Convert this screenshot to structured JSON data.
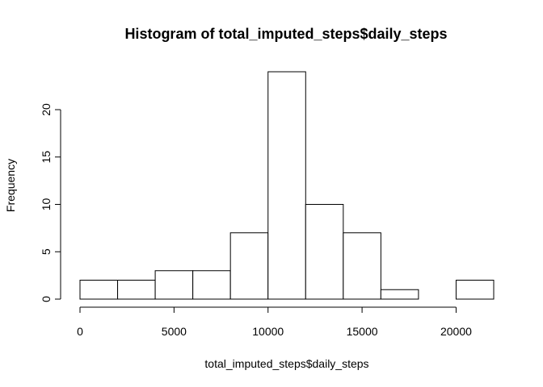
{
  "chart_data": {
    "type": "bar",
    "title": "Histogram of total_imputed_steps$daily_steps",
    "xlabel": "total_imputed_steps$daily_steps",
    "ylabel": "Frequency",
    "bins": [
      {
        "start": 0,
        "end": 2000,
        "count": 2
      },
      {
        "start": 2000,
        "end": 4000,
        "count": 2
      },
      {
        "start": 4000,
        "end": 6000,
        "count": 3
      },
      {
        "start": 6000,
        "end": 8000,
        "count": 3
      },
      {
        "start": 8000,
        "end": 10000,
        "count": 7
      },
      {
        "start": 10000,
        "end": 12000,
        "count": 24
      },
      {
        "start": 12000,
        "end": 14000,
        "count": 10
      },
      {
        "start": 14000,
        "end": 16000,
        "count": 7
      },
      {
        "start": 16000,
        "end": 18000,
        "count": 1
      },
      {
        "start": 18000,
        "end": 20000,
        "count": 0
      },
      {
        "start": 20000,
        "end": 22000,
        "count": 2
      }
    ],
    "xlim": [
      0,
      22000
    ],
    "ylim": [
      0,
      24
    ],
    "xticks": [
      0,
      5000,
      10000,
      15000,
      20000
    ],
    "xtick_labels": [
      "0",
      "5000",
      "10000",
      "15000",
      "20000"
    ],
    "yticks": [
      0,
      5,
      10,
      15,
      20
    ],
    "ytick_labels": [
      "0",
      "5",
      "10",
      "15",
      "20"
    ],
    "grid": false,
    "colors": {
      "bar_fill": "#ffffff",
      "bar_stroke": "#000000"
    }
  }
}
